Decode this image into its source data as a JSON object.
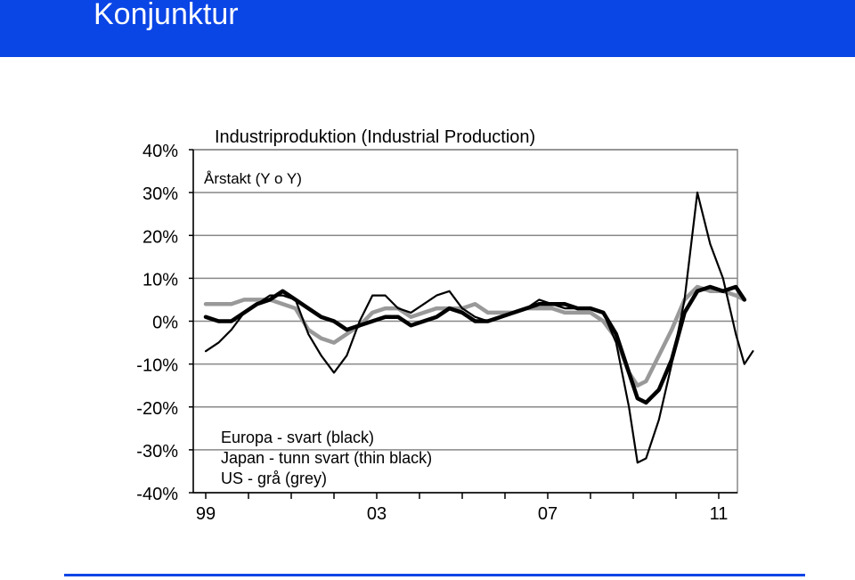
{
  "header": {
    "title": "Konjunktur"
  },
  "colors": {
    "accent": "#0a45e6",
    "europe": "#000000",
    "japan": "#000000",
    "us": "#999999"
  },
  "chart_data": {
    "type": "line",
    "title": "Industriproduktion (Industrial Production)",
    "subtitle": "Årstakt (Y o Y)",
    "ylim": [
      -40,
      40
    ],
    "y_ticks": [
      40,
      30,
      20,
      10,
      0,
      -10,
      -20,
      -30,
      -40
    ],
    "y_tick_labels": [
      "40%",
      "30%",
      "20%",
      "10%",
      "0%",
      "-10%",
      "-20%",
      "-30%",
      "-40%"
    ],
    "x_tick_labels": [
      "99",
      "03",
      "07",
      "11"
    ],
    "x_tick_years": [
      1999,
      2003,
      2007,
      2011
    ],
    "grid": true,
    "legend": [
      "Europa - svart (black)",
      "Japan - tunn svart (thin black)",
      "US - grå (grey)"
    ],
    "series": [
      {
        "name": "Europa - svart (black)",
        "x": [
          1999.0,
          1999.3,
          1999.6,
          1999.9,
          2000.2,
          2000.5,
          2000.8,
          2001.1,
          2001.4,
          2001.7,
          2002.0,
          2002.3,
          2002.6,
          2002.9,
          2003.2,
          2003.5,
          2003.8,
          2004.1,
          2004.4,
          2004.7,
          2005.0,
          2005.3,
          2005.6,
          2005.9,
          2006.2,
          2006.5,
          2006.8,
          2007.1,
          2007.4,
          2007.7,
          2008.0,
          2008.3,
          2008.6,
          2008.9,
          2009.1,
          2009.3,
          2009.6,
          2009.9,
          2010.2,
          2010.5,
          2010.8,
          2011.1,
          2011.4,
          2011.6
        ],
        "values": [
          1,
          0,
          0,
          2,
          4,
          5,
          7,
          5,
          3,
          1,
          0,
          -2,
          -1,
          0,
          1,
          1,
          -1,
          0,
          1,
          3,
          2,
          0,
          0,
          1,
          2,
          3,
          4,
          4,
          4,
          3,
          3,
          2,
          -3,
          -12,
          -18,
          -19,
          -16,
          -9,
          2,
          7,
          8,
          7,
          8,
          5
        ]
      },
      {
        "name": "Japan - tunn svart (thin black)",
        "x": [
          1999.0,
          1999.3,
          1999.6,
          1999.9,
          2000.2,
          2000.5,
          2000.8,
          2001.1,
          2001.4,
          2001.7,
          2002.0,
          2002.3,
          2002.6,
          2002.9,
          2003.2,
          2003.5,
          2003.8,
          2004.1,
          2004.4,
          2004.7,
          2005.0,
          2005.3,
          2005.6,
          2005.9,
          2006.2,
          2006.5,
          2006.8,
          2007.1,
          2007.4,
          2007.7,
          2008.0,
          2008.3,
          2008.6,
          2008.9,
          2009.1,
          2009.3,
          2009.6,
          2009.9,
          2010.2,
          2010.5,
          2010.8,
          2011.1,
          2011.4,
          2011.6,
          2011.8
        ],
        "values": [
          -7,
          -5,
          -2,
          2,
          4,
          6,
          6,
          5,
          -3,
          -8,
          -12,
          -8,
          0,
          6,
          6,
          3,
          2,
          4,
          6,
          7,
          3,
          1,
          0,
          1,
          2,
          3,
          5,
          4,
          3,
          3,
          3,
          2,
          -5,
          -20,
          -33,
          -32,
          -23,
          -10,
          5,
          30,
          18,
          10,
          -3,
          -10,
          -7
        ]
      },
      {
        "name": "US - grå (grey)",
        "x": [
          1999.0,
          1999.3,
          1999.6,
          1999.9,
          2000.2,
          2000.5,
          2000.8,
          2001.1,
          2001.4,
          2001.7,
          2002.0,
          2002.3,
          2002.6,
          2002.9,
          2003.2,
          2003.5,
          2003.8,
          2004.1,
          2004.4,
          2004.7,
          2005.0,
          2005.3,
          2005.6,
          2005.9,
          2006.2,
          2006.5,
          2006.8,
          2007.1,
          2007.4,
          2007.7,
          2008.0,
          2008.3,
          2008.6,
          2008.9,
          2009.1,
          2009.3,
          2009.6,
          2009.9,
          2010.2,
          2010.5,
          2010.8,
          2011.1,
          2011.4,
          2011.6
        ],
        "values": [
          4,
          4,
          4,
          5,
          5,
          5,
          4,
          3,
          -2,
          -4,
          -5,
          -3,
          -1,
          2,
          3,
          3,
          1,
          2,
          3,
          3,
          3,
          4,
          2,
          2,
          2,
          3,
          3,
          3,
          2,
          2,
          2,
          0,
          -4,
          -12,
          -15,
          -14,
          -8,
          -2,
          5,
          8,
          7,
          7,
          6,
          5
        ]
      }
    ]
  }
}
